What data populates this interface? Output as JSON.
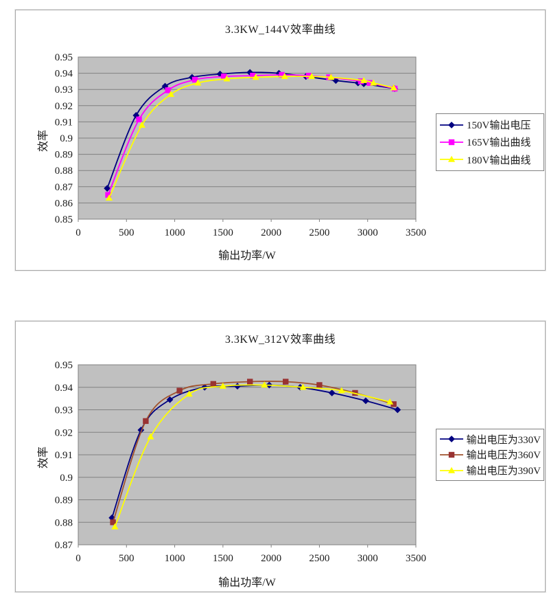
{
  "page": {
    "background": "#ffffff",
    "plot_background": "#c0c0c0",
    "grid_color": "#808080",
    "text_color": "#1a1a1a"
  },
  "chart_data": [
    {
      "type": "line",
      "title": "3.3KW_144V效率曲线",
      "xlabel": "输出功率/W",
      "ylabel": "效率",
      "xlim": [
        0,
        3500
      ],
      "ylim": [
        0.85,
        0.95
      ],
      "x_ticks": [
        "0",
        "500",
        "1000",
        "1500",
        "2000",
        "2500",
        "3000",
        "3500"
      ],
      "y_ticks": [
        "0.95",
        "0.94",
        "0.93",
        "0.92",
        "0.91",
        "0.9",
        "0.89",
        "0.88",
        "0.87",
        "0.86",
        "0.85"
      ],
      "grid": true,
      "legend_position": "right",
      "series": [
        {
          "name": "150V输出电压",
          "color": "#000080",
          "marker": "diamond",
          "x": [
            300,
            600,
            900,
            1180,
            1470,
            1780,
            2080,
            2360,
            2670,
            2900,
            2960,
            3280
          ],
          "y": [
            0.869,
            0.914,
            0.932,
            0.9375,
            0.9395,
            0.9405,
            0.94,
            0.938,
            0.9355,
            0.934,
            0.9335,
            0.9305
          ]
        },
        {
          "name": "165V输出曲线",
          "color": "#ff00ff",
          "marker": "square",
          "x": [
            310,
            630,
            930,
            1210,
            1510,
            1810,
            2110,
            2390,
            2600,
            2930,
            3020,
            3280
          ],
          "y": [
            0.865,
            0.9115,
            0.9295,
            0.936,
            0.938,
            0.9385,
            0.939,
            0.9385,
            0.9375,
            0.935,
            0.934,
            0.9305
          ]
        },
        {
          "name": "180V输出曲线",
          "color": "#ffff00",
          "marker": "triangle",
          "x": [
            320,
            660,
            960,
            1240,
            1540,
            1840,
            2140,
            2420,
            2620,
            2960,
            3060,
            3270
          ],
          "y": [
            0.863,
            0.908,
            0.927,
            0.934,
            0.9365,
            0.9375,
            0.938,
            0.938,
            0.9375,
            0.9355,
            0.934,
            0.931
          ]
        }
      ]
    },
    {
      "type": "line",
      "title": "3.3KW_312V效率曲线",
      "xlabel": "输出功率/W",
      "ylabel": "效率",
      "xlim": [
        0,
        3500
      ],
      "ylim": [
        0.87,
        0.95
      ],
      "x_ticks": [
        "0",
        "500",
        "1000",
        "1500",
        "2000",
        "2500",
        "3000",
        "3500"
      ],
      "y_ticks": [
        "0.95",
        "0.94",
        "0.93",
        "0.92",
        "0.91",
        "0.9",
        "0.89",
        "0.88",
        "0.87"
      ],
      "grid": true,
      "legend_position": "right",
      "series": [
        {
          "name": "输出电压为330V",
          "color": "#000080",
          "marker": "diamond",
          "x": [
            350,
            650,
            950,
            1310,
            1650,
            1980,
            2300,
            2630,
            2980,
            3310
          ],
          "y": [
            0.882,
            0.921,
            0.9345,
            0.94,
            0.9405,
            0.941,
            0.94,
            0.9375,
            0.934,
            0.93
          ]
        },
        {
          "name": "输出电压为360V",
          "color": "#a0522d",
          "marker": "square",
          "marker_color": "#993333",
          "x": [
            360,
            700,
            1050,
            1400,
            1780,
            2150,
            2500,
            2870,
            3270
          ],
          "y": [
            0.88,
            0.925,
            0.9385,
            0.9415,
            0.9425,
            0.9425,
            0.941,
            0.9375,
            0.9325
          ]
        },
        {
          "name": "输出电压为390V",
          "color": "#ffff00",
          "marker": "triangle",
          "x": [
            380,
            750,
            1150,
            1500,
            1930,
            2330,
            2730,
            3230
          ],
          "y": [
            0.878,
            0.918,
            0.937,
            0.9405,
            0.941,
            0.94,
            0.9385,
            0.9335
          ]
        }
      ]
    }
  ]
}
